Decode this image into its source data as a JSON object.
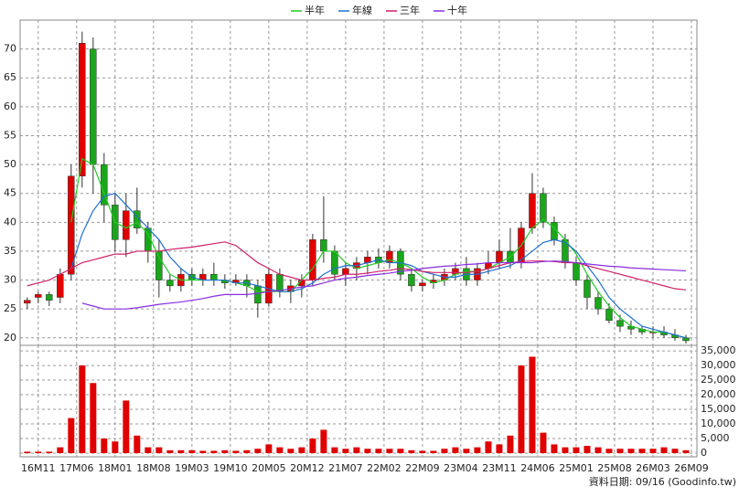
{
  "chart_data": {
    "type": "candlestick",
    "x": [
      -2,
      0,
      2,
      4,
      6,
      8,
      10,
      12,
      14,
      16,
      18,
      20,
      22,
      24,
      26,
      28,
      30,
      32,
      34,
      36,
      38,
      40,
      42,
      44,
      46,
      48,
      50,
      52,
      54,
      56,
      58,
      60,
      62,
      64,
      66,
      68,
      70,
      72,
      74,
      76,
      78,
      80,
      82,
      84,
      86,
      88,
      90,
      92,
      94,
      96,
      98,
      100,
      102,
      104,
      106,
      108,
      110,
      112,
      114,
      116,
      118
    ],
    "open": [
      26,
      27,
      27.5,
      27,
      31,
      48,
      70,
      50,
      43,
      37,
      42,
      39,
      35,
      30,
      29,
      31,
      30,
      31,
      30,
      29.5,
      30,
      29,
      26,
      31,
      28,
      29,
      30,
      37,
      35,
      31,
      32,
      33,
      34,
      33,
      35,
      31,
      29,
      29.5,
      30,
      31,
      32,
      30,
      32,
      33,
      35,
      33,
      39,
      45,
      40,
      37,
      33,
      30,
      27,
      25,
      23,
      22,
      21.5,
      21,
      21,
      20.5,
      20
    ],
    "high": [
      27,
      28,
      28,
      32,
      50,
      73,
      72,
      52,
      45,
      45,
      46,
      40,
      37,
      31,
      32,
      32,
      32,
      33,
      31,
      31,
      31,
      30,
      32,
      32,
      30,
      31,
      38,
      44.5,
      36,
      33,
      34,
      35,
      35.5,
      36,
      35.5,
      32,
      30,
      31,
      32,
      33,
      34,
      33,
      35,
      37,
      39,
      40,
      48.5,
      46,
      41,
      38,
      34,
      31,
      28,
      26,
      24,
      23,
      22,
      22,
      22,
      21.5,
      20.5
    ],
    "low": [
      25,
      26,
      25.5,
      26,
      30,
      46,
      45,
      40,
      35,
      34,
      38,
      33,
      27,
      28,
      28,
      29,
      29,
      29,
      28.5,
      29,
      27,
      23.5,
      25.5,
      27,
      26,
      27,
      29,
      33,
      30,
      29,
      30,
      31,
      32,
      32,
      30,
      28,
      28,
      28.5,
      29,
      30,
      29,
      29,
      31,
      32,
      32,
      32,
      38,
      39,
      36,
      32,
      29,
      25,
      24,
      22.5,
      21,
      20.5,
      20.5,
      20,
      20,
      19.5,
      19
    ],
    "close": [
      26.5,
      27.5,
      26.5,
      31,
      48,
      71,
      50,
      43,
      37,
      42,
      39,
      35,
      30,
      29,
      31,
      30,
      31,
      30,
      29.5,
      30,
      29,
      26,
      31,
      28,
      29,
      30,
      37,
      35,
      31,
      32,
      33,
      34,
      33,
      35,
      31,
      29,
      29.5,
      30,
      31,
      32,
      30,
      32,
      33,
      35,
      33,
      39,
      45,
      40,
      37,
      33,
      30,
      27,
      25,
      23,
      22,
      21.5,
      21,
      21,
      20.5,
      20,
      19.5
    ],
    "up_color": "#e00000",
    "down_color": "#1aa61a",
    "xlim": [
      -3.3,
      120
    ],
    "ylim": [
      18.7,
      75
    ],
    "xticks": [
      {
        "value": 0,
        "label": "16M11"
      },
      {
        "value": 7,
        "label": "17M06"
      },
      {
        "value": 14,
        "label": "18M01"
      },
      {
        "value": 21,
        "label": "18M08"
      },
      {
        "value": 28,
        "label": "19M03"
      },
      {
        "value": 35,
        "label": "19M10"
      },
      {
        "value": 42,
        "label": "20M05"
      },
      {
        "value": 49,
        "label": "20M12"
      },
      {
        "value": 56,
        "label": "21M07"
      },
      {
        "value": 63,
        "label": "22M02"
      },
      {
        "value": 70,
        "label": "22M09"
      },
      {
        "value": 77,
        "label": "23M04"
      },
      {
        "value": 84,
        "label": "23M11"
      },
      {
        "value": 91,
        "label": "24M06"
      },
      {
        "value": 98,
        "label": "25M01"
      },
      {
        "value": 105,
        "label": "25M08"
      },
      {
        "value": 112,
        "label": "26M03"
      },
      {
        "value": 119,
        "label": "26M09"
      }
    ],
    "yticks": [
      20,
      25,
      30,
      35,
      40,
      45,
      50,
      55,
      60,
      65,
      70
    ],
    "grid": true,
    "series": [
      {
        "name": "半年",
        "color": "#22cc22",
        "values": [
          null,
          null,
          null,
          null,
          40,
          51,
          50,
          45,
          40,
          39,
          40,
          38,
          34,
          31,
          30,
          30,
          30,
          30,
          30,
          29.5,
          29,
          28,
          28,
          28,
          28,
          30,
          32,
          35,
          35,
          33,
          32,
          32.5,
          33,
          33.5,
          33,
          32,
          30.5,
          29.5,
          30,
          31,
          31.5,
          31.5,
          32,
          33,
          34,
          36,
          39,
          40.5,
          39,
          37,
          34.5,
          31,
          28,
          25.5,
          23.5,
          22,
          21.5,
          21,
          21,
          20.5,
          20
        ]
      },
      {
        "name": "年線",
        "color": "#1f6fd0",
        "values": [
          null,
          null,
          null,
          null,
          32,
          38,
          42,
          44.5,
          45,
          43,
          41,
          39,
          37,
          34,
          32,
          30.5,
          30,
          30,
          30,
          29.5,
          29.5,
          29,
          28.5,
          28,
          28,
          28.5,
          29.5,
          31,
          32,
          32.5,
          32.5,
          33,
          33.5,
          33,
          33,
          32.5,
          31.5,
          31,
          30.5,
          30.5,
          31,
          31,
          31.5,
          32,
          32.5,
          33.5,
          35,
          36.5,
          37,
          36.5,
          35,
          32.5,
          30,
          27,
          25,
          23.5,
          22,
          21.5,
          21,
          20.5,
          20
        ]
      },
      {
        "name": "三年",
        "color": "#d0206a",
        "values": [
          29,
          29.5,
          30,
          31,
          32,
          33,
          33.5,
          34,
          34.5,
          34.5,
          35,
          35,
          35,
          35.3,
          35.5,
          35.7,
          36,
          36.3,
          36.6,
          36,
          34.5,
          33,
          32,
          31,
          30.5,
          30,
          30,
          30.3,
          30.5,
          31,
          31,
          31.2,
          31.5,
          31.7,
          32,
          31.8,
          31.5,
          31.3,
          31.3,
          31.3,
          31.3,
          31.5,
          32,
          32.5,
          33,
          33.2,
          33.3,
          33.3,
          33.2,
          33,
          33,
          32.5,
          32,
          31.5,
          31,
          30.5,
          30,
          29.5,
          29,
          28.5,
          28.3
        ]
      },
      {
        "name": "十年",
        "color": "#8a2be2",
        "values": [
          null,
          null,
          null,
          null,
          null,
          26,
          25.5,
          25,
          25,
          25,
          25.2,
          25.5,
          25.8,
          26,
          26.2,
          26.5,
          26.8,
          27.2,
          27.5,
          27.5,
          27.5,
          27.7,
          28,
          28.2,
          28.5,
          28.8,
          29,
          29.5,
          30,
          30.3,
          30.5,
          30.8,
          31,
          31.2,
          31.5,
          31.7,
          32,
          32.2,
          32.4,
          32.5,
          32.7,
          32.8,
          33,
          33,
          33,
          33,
          33,
          33.2,
          33.3,
          33.2,
          33,
          32.8,
          32.6,
          32.4,
          32.3,
          32.1,
          32,
          31.9,
          31.8,
          31.7,
          31.6
        ]
      }
    ],
    "volume": {
      "color": "#e00000",
      "values": [
        500,
        500,
        500,
        2000,
        12000,
        30000,
        24000,
        5000,
        4000,
        18000,
        6000,
        2000,
        2000,
        1000,
        1000,
        1000,
        800,
        800,
        1000,
        800,
        1000,
        1500,
        3000,
        2000,
        1500,
        2000,
        5000,
        8000,
        2000,
        1500,
        2000,
        1500,
        1500,
        1500,
        1500,
        1000,
        800,
        800,
        1500,
        2000,
        1500,
        2000,
        4000,
        3000,
        6000,
        30000,
        33000,
        7000,
        3000,
        2000,
        2000,
        2500,
        2000,
        1500,
        1500,
        1500,
        1500,
        1500,
        2000,
        1500,
        1000
      ],
      "ylim": [
        -1250,
        36900
      ],
      "yticks": [
        0,
        {
          "value": 5000,
          "label": "5,000"
        },
        {
          "value": 10000,
          "label": "10,000"
        },
        {
          "value": 15000,
          "label": "15,000"
        },
        {
          "value": 20000,
          "label": "20,000"
        },
        {
          "value": 25000,
          "label": "25,000"
        },
        {
          "value": 30000,
          "label": "30,000"
        },
        {
          "value": 35000,
          "label": "35,000"
        }
      ]
    },
    "source": "資料日期: 09/16 (Goodinfo.tw)"
  }
}
